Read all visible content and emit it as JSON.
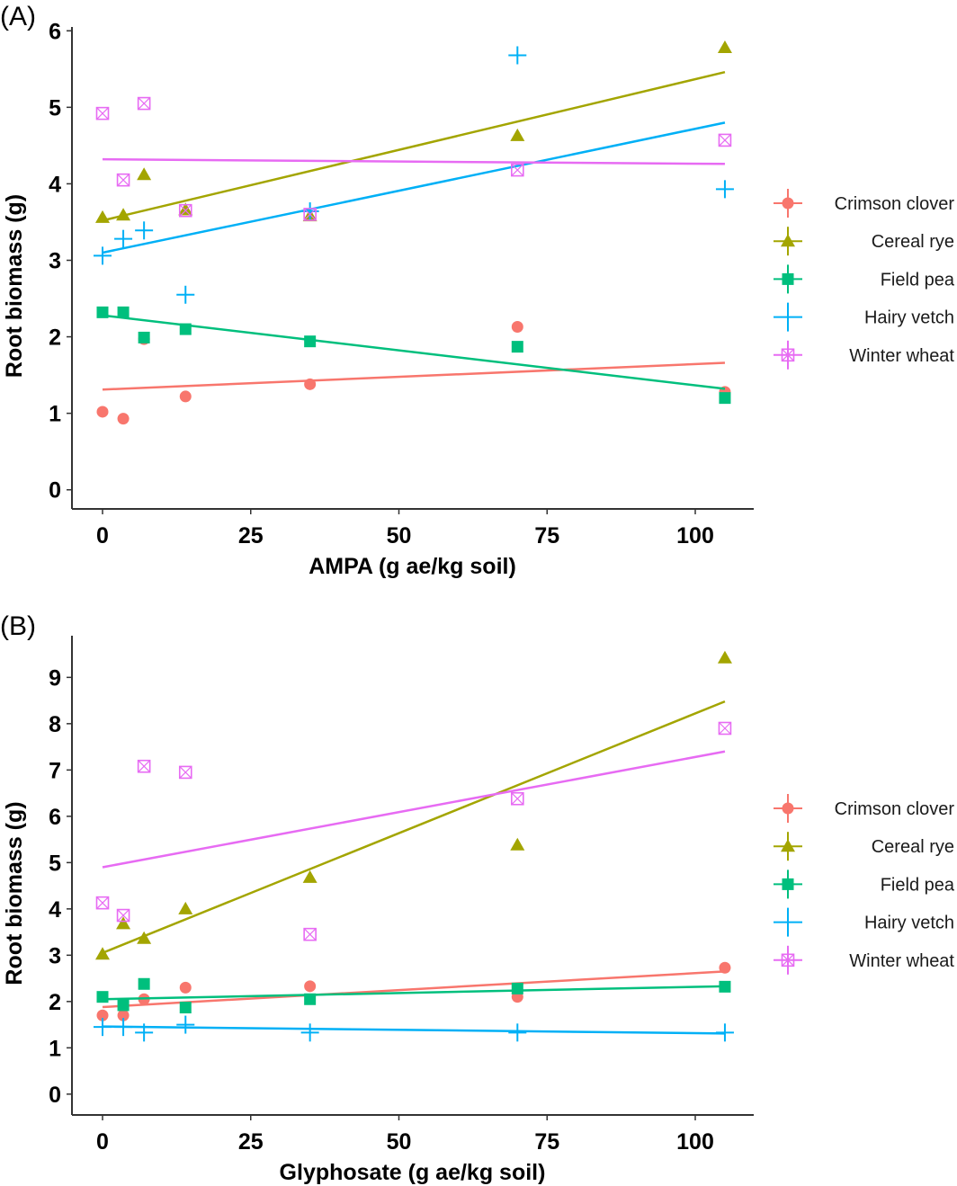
{
  "chart_data": [
    {
      "type": "scatter",
      "panel_label": "(A)",
      "title": "",
      "xlabel": "AMPA (g ae/kg soil)",
      "ylabel": "Root biomass (g)",
      "xlim": [
        -5,
        110
      ],
      "ylim": [
        -0.25,
        6.05
      ],
      "xticks": [
        0,
        25,
        50,
        75,
        100
      ],
      "yticks": [
        0,
        1,
        2,
        3,
        4,
        5,
        6
      ],
      "grid": false,
      "legend_position": "right",
      "x": [
        0,
        3.5,
        7,
        14,
        35,
        70,
        105
      ],
      "series": [
        {
          "name": "Crimson clover",
          "color": "#F8766D",
          "marker": "circle",
          "values": [
            1.02,
            0.93,
            1.97,
            1.22,
            1.38,
            2.13,
            1.28
          ],
          "fit": [
            1.31,
            1.66
          ]
        },
        {
          "name": "Cereal rye",
          "color": "#A3A500",
          "marker": "triangle",
          "values": [
            3.56,
            3.59,
            4.12,
            3.66,
            3.58,
            4.63,
            5.78
          ],
          "fit": [
            3.52,
            5.46
          ]
        },
        {
          "name": "Field pea",
          "color": "#00BF7D",
          "marker": "square",
          "values": [
            2.32,
            2.32,
            1.99,
            2.1,
            1.94,
            1.87,
            1.2
          ],
          "fit": [
            2.28,
            1.32
          ]
        },
        {
          "name": "Hairy vetch",
          "color": "#00B0F6",
          "marker": "plus",
          "values": [
            3.06,
            3.28,
            3.39,
            2.55,
            3.64,
            5.68,
            3.93
          ],
          "fit": [
            3.1,
            4.8
          ]
        },
        {
          "name": "Winter wheat",
          "color": "#E76BF3",
          "marker": "boxcross",
          "values": [
            4.92,
            4.05,
            5.05,
            3.65,
            3.6,
            4.18,
            4.57
          ],
          "fit": [
            4.32,
            4.26
          ]
        }
      ]
    },
    {
      "type": "scatter",
      "panel_label": "(B)",
      "title": "",
      "xlabel": "Glyphosate (g ae/kg soil)",
      "ylabel": "Root biomass (g)",
      "xlim": [
        -5,
        110
      ],
      "ylim": [
        -0.45,
        9.9
      ],
      "xticks": [
        0,
        25,
        50,
        75,
        100
      ],
      "yticks": [
        0,
        1,
        2,
        3,
        4,
        5,
        6,
        7,
        8,
        9
      ],
      "grid": false,
      "legend_position": "right",
      "x": [
        0,
        3.5,
        7,
        14,
        35,
        70,
        105
      ],
      "series": [
        {
          "name": "Crimson clover",
          "color": "#F8766D",
          "marker": "circle",
          "values": [
            1.7,
            1.7,
            2.05,
            2.3,
            2.33,
            2.1,
            2.73
          ],
          "fit": [
            1.88,
            2.65
          ]
        },
        {
          "name": "Cereal rye",
          "color": "#A3A500",
          "marker": "triangle",
          "values": [
            3.02,
            3.68,
            3.36,
            4.0,
            4.68,
            5.38,
            9.42
          ],
          "fit": [
            3.05,
            8.48
          ]
        },
        {
          "name": "Field pea",
          "color": "#00BF7D",
          "marker": "square",
          "values": [
            2.1,
            1.92,
            2.38,
            1.87,
            2.05,
            2.28,
            2.32
          ],
          "fit": [
            2.05,
            2.33
          ]
        },
        {
          "name": "Hairy vetch",
          "color": "#00B0F6",
          "marker": "plus",
          "values": [
            1.45,
            1.45,
            1.33,
            1.5,
            1.33,
            1.33,
            1.33
          ],
          "fit": [
            1.46,
            1.31
          ]
        },
        {
          "name": "Winter wheat",
          "color": "#E76BF3",
          "marker": "boxcross",
          "values": [
            4.13,
            3.86,
            7.08,
            6.95,
            3.45,
            6.38,
            7.9
          ],
          "fit": [
            4.9,
            7.4
          ]
        }
      ]
    }
  ]
}
